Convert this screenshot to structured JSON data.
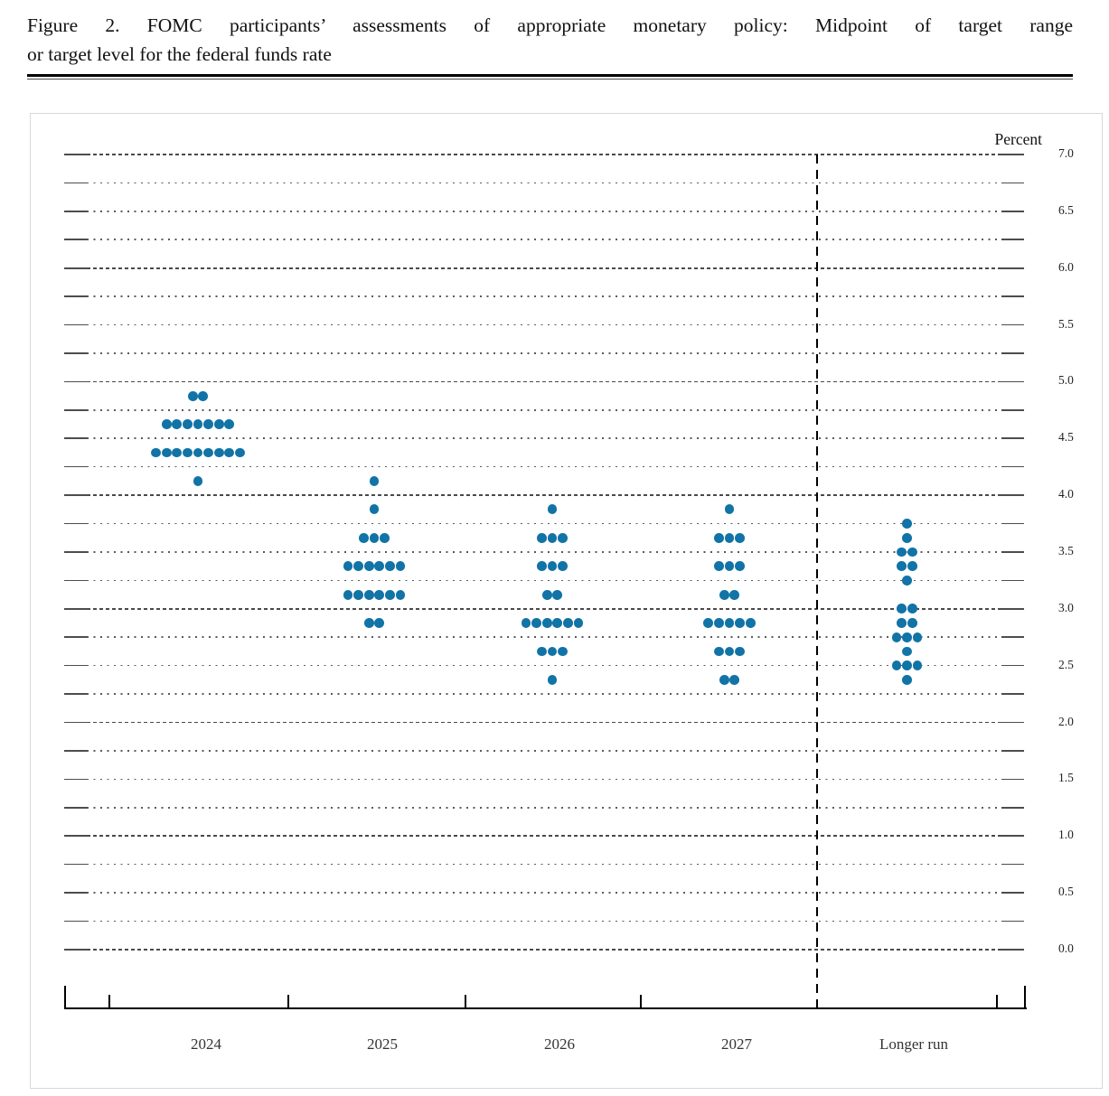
{
  "figure": {
    "title_line1": "Figure 2.  FOMC participants’ assessments of appropriate monetary policy:  Midpoint of target range",
    "title_line2": "or target level for the federal funds rate"
  },
  "chart_data": {
    "type": "scatter",
    "subtype": "fomc-dot-plot",
    "title": "Figure 2. FOMC participants’ assessments of appropriate monetary policy: Midpoint of target range or target level for the federal funds rate",
    "ylabel": "Percent",
    "y_axis": {
      "min": 0.0,
      "max": 7.0,
      "label_step": 0.5,
      "grid_step": 0.25,
      "tick_labels": [
        "7.0",
        "6.5",
        "6.0",
        "5.5",
        "5.0",
        "4.5",
        "4.0",
        "3.5",
        "3.0",
        "2.5",
        "2.0",
        "1.5",
        "1.0",
        "0.5",
        "0.0"
      ]
    },
    "categories": [
      "2024",
      "2025",
      "2026",
      "2027",
      "Longer run"
    ],
    "separator_before_category": "Longer run",
    "grid": true,
    "legend": "none",
    "series": [
      {
        "name": "2024",
        "dots": [
          {
            "value": 4.875,
            "count": 2
          },
          {
            "value": 4.625,
            "count": 7
          },
          {
            "value": 4.375,
            "count": 9
          },
          {
            "value": 4.125,
            "count": 1
          }
        ]
      },
      {
        "name": "2025",
        "dots": [
          {
            "value": 4.125,
            "count": 1
          },
          {
            "value": 3.875,
            "count": 1
          },
          {
            "value": 3.625,
            "count": 3
          },
          {
            "value": 3.375,
            "count": 6
          },
          {
            "value": 3.125,
            "count": 6
          },
          {
            "value": 2.875,
            "count": 2
          }
        ]
      },
      {
        "name": "2026",
        "dots": [
          {
            "value": 3.875,
            "count": 1
          },
          {
            "value": 3.625,
            "count": 3
          },
          {
            "value": 3.375,
            "count": 3
          },
          {
            "value": 3.125,
            "count": 2
          },
          {
            "value": 2.875,
            "count": 6
          },
          {
            "value": 2.625,
            "count": 3
          },
          {
            "value": 2.375,
            "count": 1
          }
        ]
      },
      {
        "name": "2027",
        "dots": [
          {
            "value": 3.875,
            "count": 1
          },
          {
            "value": 3.625,
            "count": 3
          },
          {
            "value": 3.375,
            "count": 3
          },
          {
            "value": 3.125,
            "count": 2
          },
          {
            "value": 2.875,
            "count": 5
          },
          {
            "value": 2.625,
            "count": 3
          },
          {
            "value": 2.375,
            "count": 2
          }
        ]
      },
      {
        "name": "Longer run",
        "dots": [
          {
            "value": 3.75,
            "count": 1
          },
          {
            "value": 3.625,
            "count": 1
          },
          {
            "value": 3.5,
            "count": 2
          },
          {
            "value": 3.375,
            "count": 2
          },
          {
            "value": 3.25,
            "count": 1
          },
          {
            "value": 3.0,
            "count": 2
          },
          {
            "value": 2.875,
            "count": 2
          },
          {
            "value": 2.75,
            "count": 3
          },
          {
            "value": 2.625,
            "count": 1
          },
          {
            "value": 2.5,
            "count": 3
          },
          {
            "value": 2.375,
            "count": 1
          }
        ]
      }
    ],
    "colors": {
      "dot": "#1173a6",
      "grid": "#555555",
      "separator_line": "#000000",
      "axis": "#000000"
    }
  }
}
